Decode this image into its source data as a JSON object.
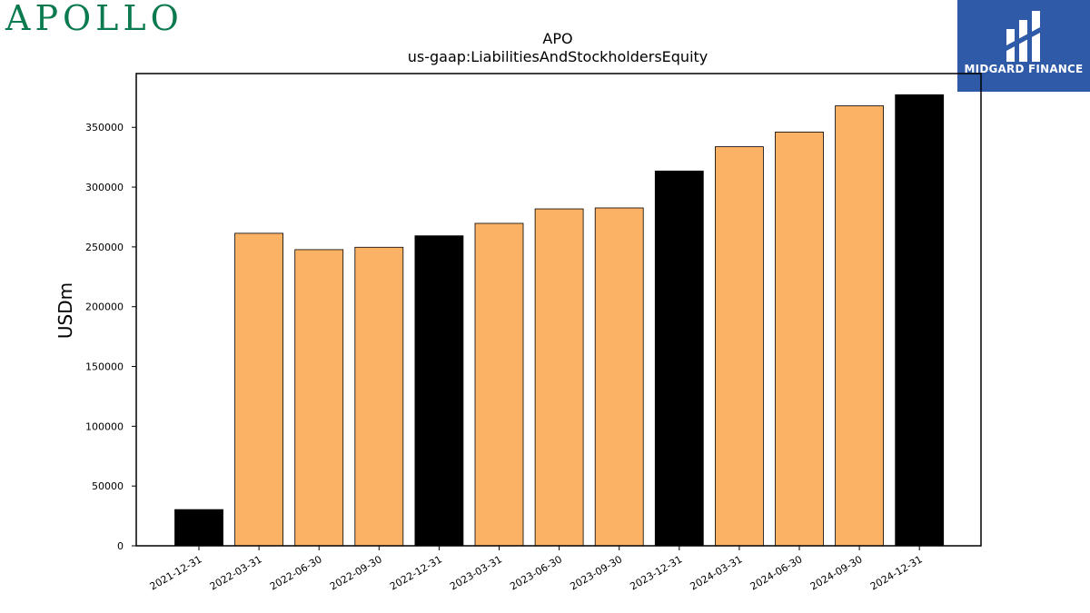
{
  "header": {
    "left_logo_text": "APOLLO",
    "right_logo_text": "MIDGARD FINANCE",
    "right_logo_icon": "mf-monogram-icon"
  },
  "colors": {
    "bar_default": "#fbb264",
    "bar_year_end": "#000000",
    "left_logo": "#0b7a4e",
    "right_logo_bg": "#2f5aa8"
  },
  "chart_data": {
    "type": "bar",
    "title": "APO",
    "subtitle": "us-gaap:LiabilitiesAndStockholdersEquity",
    "xlabel": "",
    "ylabel": "USDm",
    "ylim": [
      0,
      395000
    ],
    "yticks": [
      0,
      50000,
      100000,
      150000,
      200000,
      250000,
      300000,
      350000
    ],
    "grid": false,
    "categories": [
      "2021-12-31",
      "2022-03-31",
      "2022-06-30",
      "2022-09-30",
      "2022-12-31",
      "2023-03-31",
      "2023-06-30",
      "2023-09-30",
      "2023-12-31",
      "2024-03-31",
      "2024-06-30",
      "2024-09-30",
      "2024-12-31"
    ],
    "values": [
      30300,
      261400,
      247700,
      249700,
      259300,
      269700,
      281800,
      282600,
      313500,
      333800,
      346100,
      368000,
      377300
    ],
    "bar_colors": [
      "#000000",
      "#fbb264",
      "#fbb264",
      "#fbb264",
      "#000000",
      "#fbb264",
      "#fbb264",
      "#fbb264",
      "#000000",
      "#fbb264",
      "#fbb264",
      "#fbb264",
      "#000000"
    ]
  }
}
